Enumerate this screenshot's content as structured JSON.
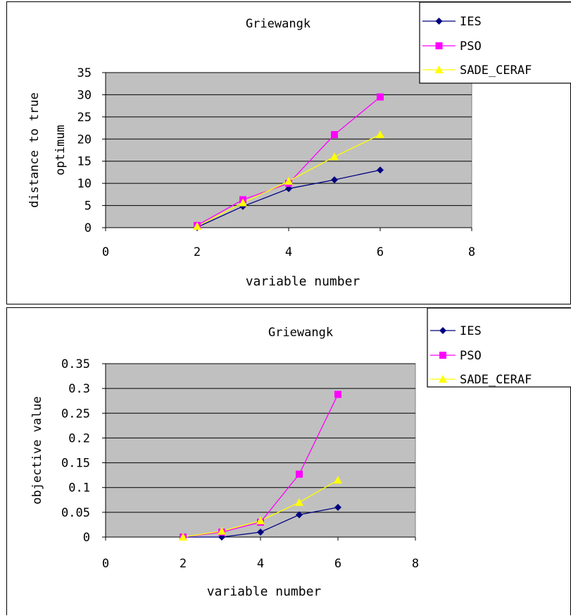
{
  "chart_data": [
    {
      "type": "line",
      "title": "Griewangk",
      "xlabel": "variable number",
      "ylabel_lines": [
        "distance to true",
        "optimum"
      ],
      "xlim": [
        0,
        8
      ],
      "ylim": [
        0,
        35
      ],
      "x_ticks": [
        "0",
        "2",
        "4",
        "6",
        "8"
      ],
      "y_ticks": [
        "0",
        "5",
        "10",
        "15",
        "20",
        "25",
        "30",
        "35"
      ],
      "grid": true,
      "legend_position": "top-right",
      "series": [
        {
          "name": "IES",
          "color": "#000080",
          "marker": "diamond",
          "x": [
            2,
            3,
            4,
            5,
            6
          ],
          "y": [
            0.1,
            4.8,
            8.8,
            10.8,
            13.0
          ]
        },
        {
          "name": "PSO",
          "color": "#ff00ff",
          "marker": "square",
          "x": [
            2,
            3,
            4,
            5,
            6
          ],
          "y": [
            0.5,
            6.3,
            10.0,
            21.0,
            29.5
          ]
        },
        {
          "name": "SADE_CERAF",
          "color": "#ffff00",
          "marker": "triangle",
          "x": [
            2,
            3,
            4,
            5,
            6
          ],
          "y": [
            0.3,
            5.6,
            10.5,
            16.0,
            21.0
          ]
        }
      ]
    },
    {
      "type": "line",
      "title": "Griewangk",
      "xlabel": "variable number",
      "ylabel_lines": [
        "objective value"
      ],
      "xlim": [
        0,
        8
      ],
      "ylim": [
        0,
        0.35
      ],
      "x_ticks": [
        "0",
        "2",
        "4",
        "6",
        "8"
      ],
      "y_ticks": [
        "0",
        "0.05",
        "0.1",
        "0.15",
        "0.2",
        "0.25",
        "0.3",
        "0.35"
      ],
      "grid": true,
      "legend_position": "top-right",
      "series": [
        {
          "name": "IES",
          "color": "#000080",
          "marker": "diamond",
          "x": [
            2,
            3,
            4,
            5,
            6
          ],
          "y": [
            0.0,
            0.0,
            0.01,
            0.045,
            0.06
          ]
        },
        {
          "name": "PSO",
          "color": "#ff00ff",
          "marker": "square",
          "x": [
            2,
            3,
            4,
            5,
            6
          ],
          "y": [
            0.0,
            0.01,
            0.03,
            0.127,
            0.288
          ]
        },
        {
          "name": "SADE_CERAF",
          "color": "#ffff00",
          "marker": "triangle",
          "x": [
            2,
            3,
            4,
            5,
            6
          ],
          "y": [
            0.0,
            0.012,
            0.033,
            0.07,
            0.115
          ]
        }
      ]
    }
  ]
}
